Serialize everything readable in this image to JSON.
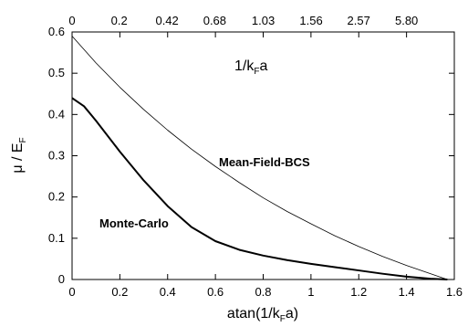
{
  "chart_data": {
    "type": "line",
    "ylabel": {
      "main": "μ / E",
      "sub": "F"
    },
    "xlabel": {
      "pre": "atan(1/k",
      "sub": "F",
      "post": "a)"
    },
    "top_axis_title": {
      "pre": "1/k",
      "sub": "F",
      "post": "a"
    },
    "xlim": [
      0,
      1.6
    ],
    "ylim": [
      0,
      0.6
    ],
    "x_ticks": [
      "0",
      "0.2",
      "0.4",
      "0.6",
      "0.8",
      "1",
      "1.2",
      "1.4",
      "1.6"
    ],
    "y_ticks": [
      "0",
      "0.1",
      "0.2",
      "0.3",
      "0.4",
      "0.5",
      "0.6"
    ],
    "top_ticks": [
      "0",
      "0.2",
      "0.42",
      "0.68",
      "1.03",
      "1.56",
      "2.57",
      "5.80"
    ],
    "series": [
      {
        "name": "Mean-Field-BCS",
        "stroke": "#000000",
        "width": 0.8,
        "x": [
          0,
          0.1,
          0.2,
          0.3,
          0.4,
          0.5,
          0.6,
          0.7,
          0.8,
          0.9,
          1.0,
          1.1,
          1.2,
          1.3,
          1.4,
          1.5,
          1.5708
        ],
        "y": [
          0.59,
          0.525,
          0.466,
          0.412,
          0.362,
          0.316,
          0.274,
          0.235,
          0.198,
          0.165,
          0.135,
          0.106,
          0.08,
          0.056,
          0.034,
          0.014,
          0
        ]
      },
      {
        "name": "Monte-Carlo",
        "stroke": "#000000",
        "width": 2,
        "x": [
          0,
          0.05,
          0.1,
          0.2,
          0.3,
          0.4,
          0.5,
          0.6,
          0.7,
          0.8,
          0.9,
          1.0,
          1.1,
          1.2,
          1.3,
          1.4,
          1.5,
          1.5708
        ],
        "y": [
          0.44,
          0.42,
          0.385,
          0.31,
          0.24,
          0.178,
          0.127,
          0.093,
          0.072,
          0.058,
          0.047,
          0.038,
          0.03,
          0.022,
          0.014,
          0.007,
          0.002,
          0
        ]
      }
    ]
  }
}
